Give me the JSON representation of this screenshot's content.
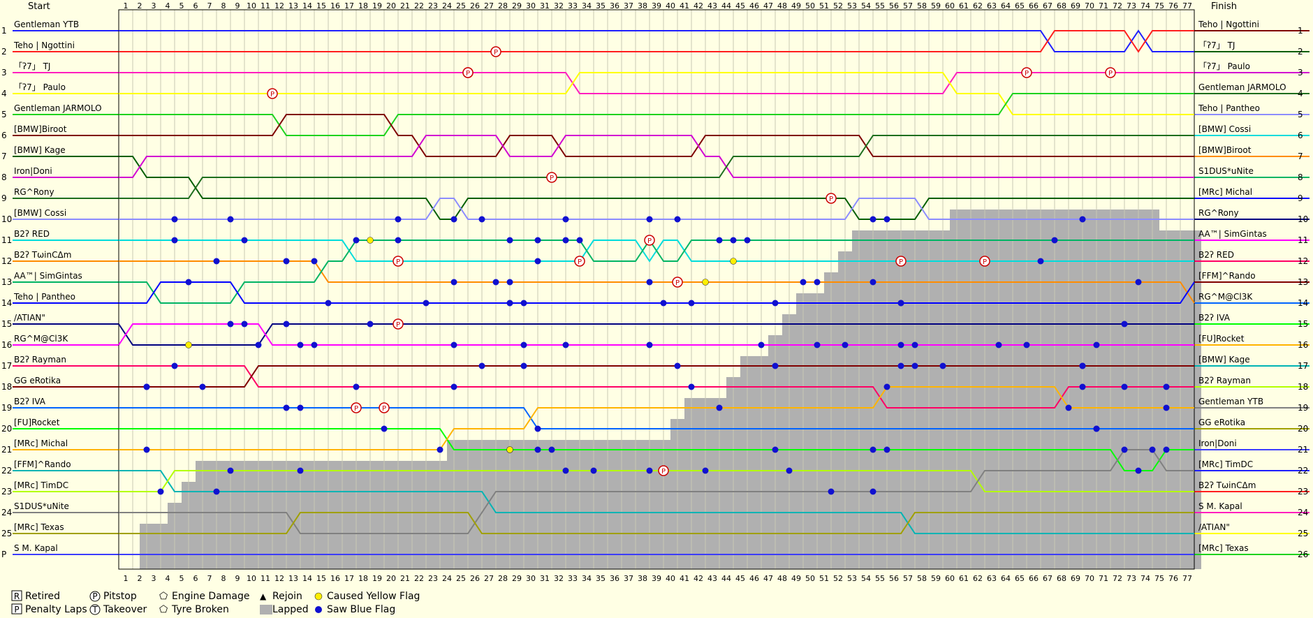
{
  "chart_data": {
    "type": "line",
    "start_label": "Start",
    "finish_label": "Finish",
    "laps": 77,
    "positions": 25,
    "start_grid": [
      "Gentleman YTB",
      "Teho | Ngottini",
      "「ʔ7」 TJ",
      "「ʔ7」 Paulo",
      "Gentleman JARMOLO",
      "[BMW]Biroot",
      "[BMW] Kage",
      "Iron|Doni",
      "RG^Rony",
      "[BMW] Cossi",
      "B2ʔ RED",
      "B2ʔ TωinCΔm",
      "AA™| SimGintas",
      "Teho | Pantheo",
      "/ATIAN\"",
      "RG^M@Cl3K",
      "B2ʔ Rayman",
      "GG eRotika",
      "B2ʔ IVA",
      "[FU]Rocket",
      "[MRc] Michal",
      "[FFM]^Rando",
      "[MRc] TimDC",
      "S1DUS*uNite",
      "[MRc] Texas",
      "S M. Kapal"
    ],
    "start_pos_labels": [
      "1",
      "2",
      "3",
      "4",
      "5",
      "6",
      "7",
      "8",
      "9",
      "10",
      "11",
      "12",
      "13",
      "14",
      "15",
      "16",
      "17",
      "18",
      "19",
      "20",
      "21",
      "22",
      "23",
      "24",
      "25",
      "P"
    ],
    "finish_order": [
      "Teho | Ngottini",
      "「ʔ7」 TJ",
      "「ʔ7」 Paulo",
      "Gentleman JARMOLO",
      "Teho | Pantheo",
      "[BMW] Cossi",
      "[BMW]Biroot",
      "S1DUS*uNite",
      "[MRc] Michal",
      "RG^Rony",
      "AA™| SimGintas",
      "B2ʔ RED",
      "[FFM]^Rando",
      "RG^M@Cl3K",
      "B2ʔ IVA",
      "[FU]Rocket",
      "[BMW] Kage",
      "B2ʔ Rayman",
      "Gentleman YTB",
      "GG eRotika",
      "Iron|Doni",
      "[MRc] TimDC",
      "B2ʔ TωinCΔm",
      "S M. Kapal",
      "/ATIAN\"",
      "[MRc] Texas"
    ],
    "finish_pos_labels": [
      "1",
      "2",
      "3",
      "4",
      "5",
      "6",
      "7",
      "8",
      "9",
      "10",
      "11",
      "12",
      "13",
      "14",
      "15",
      "16",
      "17",
      "18",
      "19",
      "20",
      "21",
      "22",
      "23",
      "24",
      "25",
      "26"
    ],
    "finish_pos_labels_clipped": [
      "18",
      "19",
      "20",
      "21",
      "22",
      "23",
      "24",
      "25",
      "26"
    ],
    "colors": [
      "#1e1eff",
      "#ff1e1e",
      "#ff1ebe",
      "#ffff00",
      "#1ed21e",
      "#7f0000",
      "#005e00",
      "#d200d2",
      "#1e6e1e",
      "#8c8cff",
      "#00dcdc",
      "#ff8c00",
      "#00b464",
      "#0000ff",
      "#000080",
      "#ff00ff",
      "#ff0064",
      "#800000",
      "#0064ff",
      "#00ff00",
      "#ffb400",
      "#00b4b4",
      "#b4ff00",
      "#808080",
      "#a0a000",
      "#3c3cff"
    ],
    "lapped_profile": [
      0,
      0,
      1,
      1,
      2,
      3,
      4,
      4,
      4,
      4,
      4,
      4,
      4,
      4,
      4,
      4,
      4,
      4,
      4,
      4,
      4,
      4,
      4,
      4,
      5,
      5,
      5,
      5,
      5,
      5,
      5,
      5,
      5,
      5,
      5,
      5,
      5,
      5,
      5,
      5,
      6,
      7,
      7,
      7,
      8,
      9,
      9,
      10,
      11,
      12,
      12,
      13,
      14,
      15,
      15,
      15,
      15,
      15,
      15,
      15,
      16,
      16,
      16,
      16,
      16,
      16,
      16,
      16,
      16,
      16,
      16,
      16,
      16,
      16,
      16,
      15,
      15,
      15
    ],
    "legend": [
      {
        "sym": "R",
        "label": "Retired"
      },
      {
        "sym": "P",
        "label": "Penalty Laps"
      },
      {
        "sym": "P",
        "label": "Pitstop"
      },
      {
        "sym": "T",
        "label": "Takeover"
      },
      {
        "sym": "⬠",
        "label": "Engine Damage"
      },
      {
        "sym": "⬠",
        "label": "Tyre Broken"
      },
      {
        "sym": "▲",
        "label": "Rejoin"
      },
      {
        "sym": "",
        "label": "Lapped"
      },
      {
        "sym": "●",
        "label": "Caused Yellow Flag"
      },
      {
        "sym": "●",
        "label": "Saw Blue Flag"
      }
    ]
  }
}
